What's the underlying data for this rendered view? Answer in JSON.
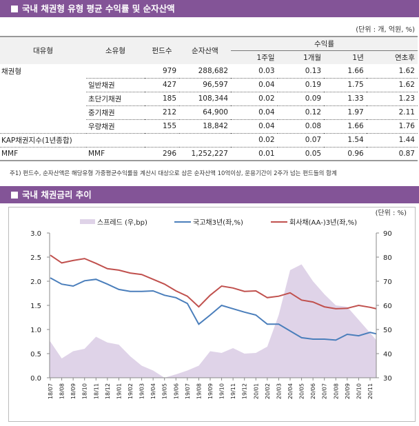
{
  "section1": {
    "title": "국내 채권형 유형 평균 수익률 및 순자산액",
    "unit": "(단위 : 개, 억원, %)"
  },
  "table": {
    "headers": {
      "major": "대유형",
      "minor": "소유형",
      "funds": "펀드수",
      "aum": "순자산액",
      "returns": "수익률",
      "w1": "1주일",
      "m1": "1개월",
      "y1": "1년",
      "ytd": "연초후"
    },
    "rows": [
      {
        "major": "채권형",
        "minor": "",
        "funds": "979",
        "aum": "288,682",
        "w1": "0.03",
        "m1": "0.13",
        "y1": "1.66",
        "ytd": "1.62"
      },
      {
        "major": "",
        "minor": "일반채권",
        "funds": "427",
        "aum": "96,597",
        "w1": "0.04",
        "m1": "0.19",
        "y1": "1.75",
        "ytd": "1.62"
      },
      {
        "major": "",
        "minor": "초단기채권",
        "funds": "185",
        "aum": "108,344",
        "w1": "0.02",
        "m1": "0.09",
        "y1": "1.33",
        "ytd": "1.23"
      },
      {
        "major": "",
        "minor": "중기채권",
        "funds": "212",
        "aum": "64,900",
        "w1": "0.04",
        "m1": "0.12",
        "y1": "1.97",
        "ytd": "2.11"
      },
      {
        "major": "",
        "minor": "우량채권",
        "funds": "155",
        "aum": "18,842",
        "w1": "0.04",
        "m1": "0.08",
        "y1": "1.66",
        "ytd": "1.76"
      },
      {
        "major": "KAP채권지수(1년종합)",
        "minor": "",
        "funds": "",
        "aum": "",
        "w1": "0.02",
        "m1": "0.07",
        "y1": "1.54",
        "ytd": "1.44"
      },
      {
        "major": "MMF",
        "minor": "MMF",
        "funds": "296",
        "aum": "1,252,227",
        "w1": "0.01",
        "m1": "0.05",
        "y1": "0.96",
        "ytd": "0.87"
      }
    ]
  },
  "note": "주1) 펀드수, 순자산액은 해당유형 가중평균수익률을 계산시 대상으로 삼은 순자산액 10억이상, 운용기간이 2주가 넘는 펀드들의 합계",
  "section2": {
    "title": "국내 채권금리 추이"
  },
  "chart_data": {
    "type": "line",
    "unit": "(단위 : %)",
    "categories": [
      "18/07",
      "18/08",
      "18/09",
      "18/10",
      "18/11",
      "18/12",
      "19/01",
      "19/02",
      "19/03",
      "19/04",
      "19/05",
      "19/06",
      "19/07",
      "19/08",
      "19/09",
      "19/10",
      "19/11",
      "19/12",
      "20/01",
      "20/02",
      "20/03",
      "20/04",
      "20/05",
      "20/06",
      "20/07",
      "20/08",
      "20/09",
      "20/10",
      "20/11"
    ],
    "left_axis": {
      "ylim": [
        0,
        3.0
      ],
      "ticks": [
        "0.0",
        "0.5",
        "1.0",
        "1.5",
        "2.0",
        "2.5",
        "3.0"
      ]
    },
    "right_axis": {
      "ylim": [
        30,
        90
      ],
      "ticks": [
        "30",
        "40",
        "50",
        "60",
        "70",
        "80",
        "90"
      ]
    },
    "series": [
      {
        "name": "스프레드 (우,bp)",
        "axis": "right",
        "type": "area",
        "color": "#dfd3e8",
        "values": [
          45,
          38,
          41,
          42,
          47,
          44.6,
          43.7,
          38.9,
          35,
          33,
          30,
          31.4,
          33,
          35,
          41,
          40.3,
          42.3,
          40,
          40.3,
          42.9,
          56,
          74.6,
          77,
          70,
          64.6,
          60,
          59.4,
          54,
          48.6
        ]
      },
      {
        "name": "국고채3년(좌,%)",
        "axis": "left",
        "type": "line",
        "color": "#4a7ebb",
        "values": [
          2.07,
          1.94,
          1.9,
          2.01,
          2.04,
          1.94,
          1.83,
          1.79,
          1.79,
          1.8,
          1.71,
          1.66,
          1.54,
          1.11,
          1.3,
          1.5,
          1.43,
          1.36,
          1.3,
          1.11,
          1.11,
          0.97,
          0.83,
          0.8,
          0.8,
          0.78,
          0.9,
          0.87,
          0.94
        ]
      },
      {
        "name": "회사채(AA-)3년(좌,%)",
        "axis": "left",
        "type": "line",
        "color": "#c0504d",
        "values": [
          2.54,
          2.38,
          2.43,
          2.47,
          2.37,
          2.26,
          2.23,
          2.17,
          2.14,
          2.04,
          1.94,
          1.8,
          1.69,
          1.47,
          1.71,
          1.9,
          1.86,
          1.79,
          1.8,
          1.66,
          1.69,
          1.76,
          1.61,
          1.57,
          1.47,
          1.43,
          1.44,
          1.5,
          1.46
        ]
      }
    ]
  }
}
